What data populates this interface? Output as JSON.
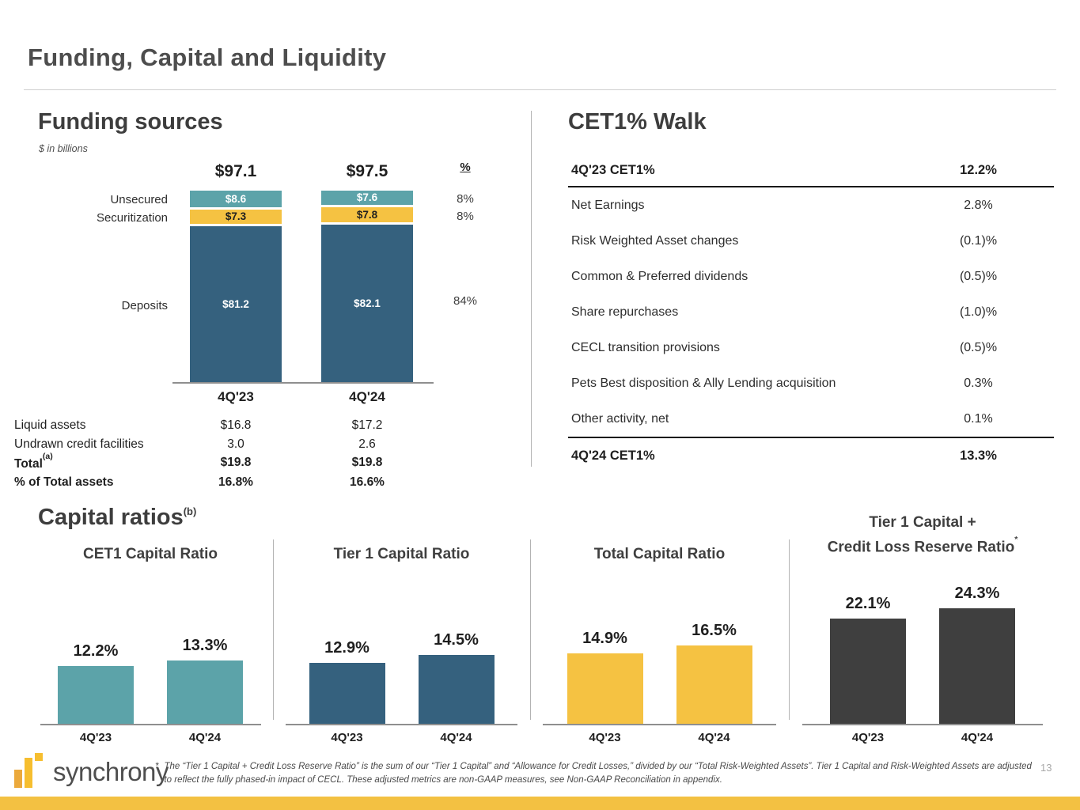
{
  "slide": {
    "title": "Funding, Capital and Liquidity",
    "page_number": "13"
  },
  "chart_data": [
    {
      "id": "funding_sources",
      "type": "bar",
      "stacked": true,
      "title": "Funding sources",
      "subtitle": "$ in billions",
      "pct_header": "%",
      "categories": [
        "4Q'23",
        "4Q'24"
      ],
      "totals": [
        "$97.1",
        "$97.5"
      ],
      "series": [
        {
          "name": "Unsecured",
          "values": [
            8.6,
            7.6
          ],
          "labels": [
            "$8.6",
            "$7.6"
          ],
          "pct": "8%",
          "color": "#5CA3A9",
          "label_color": "#ffffff"
        },
        {
          "name": "Securitization",
          "values": [
            7.3,
            7.8
          ],
          "labels": [
            "$7.3",
            "$7.8"
          ],
          "pct": "8%",
          "color": "#F5C242",
          "label_color": "#1f1f1f"
        },
        {
          "name": "Deposits",
          "values": [
            81.2,
            82.1
          ],
          "labels": [
            "$81.2",
            "$82.1"
          ],
          "pct": "84%",
          "color": "#35617E",
          "label_color": "#ffffff"
        }
      ],
      "liquidity_table": {
        "rows": [
          {
            "label": "Liquid assets",
            "sup": "",
            "col1": "$16.8",
            "col2": "$17.2",
            "bold": false
          },
          {
            "label": "Undrawn credit facilities",
            "sup": "",
            "col1": "3.0",
            "col2": "2.6",
            "bold": false
          },
          {
            "label": "Total",
            "sup": "(a)",
            "col1": "$19.8",
            "col2": "$19.8",
            "bold": true
          },
          {
            "label": "% of Total assets",
            "sup": "",
            "col1": "16.8%",
            "col2": "16.6%",
            "bold": true
          }
        ]
      }
    },
    {
      "id": "cet1_walk",
      "type": "table",
      "title": "CET1% Walk",
      "header_row": {
        "label": "4Q'23 CET1%",
        "value": "12.2%"
      },
      "rows": [
        {
          "label": "Net Earnings",
          "value": "2.8%"
        },
        {
          "label": "Risk Weighted Asset changes",
          "value": "(0.1)%"
        },
        {
          "label": "Common & Preferred dividends",
          "value": "(0.5)%"
        },
        {
          "label": "Share repurchases",
          "value": "(1.0)%"
        },
        {
          "label": "CECL transition provisions",
          "value": "(0.5)%"
        },
        {
          "label": "Pets Best disposition & Ally Lending acquisition",
          "value": "0.3%"
        },
        {
          "label": "Other activity, net",
          "value": "0.1%"
        }
      ],
      "total_row": {
        "label": "4Q'24 CET1%",
        "value": "13.3%"
      }
    },
    {
      "id": "cet1_capital_ratio",
      "type": "bar",
      "title_lines": [
        "CET1 Capital Ratio"
      ],
      "title_sup": "",
      "categories": [
        "4Q'23",
        "4Q'24"
      ],
      "values": [
        12.2,
        13.3
      ],
      "labels": [
        "12.2%",
        "13.3%"
      ],
      "color": "#5CA3A9"
    },
    {
      "id": "tier1_capital_ratio",
      "type": "bar",
      "title_lines": [
        "Tier 1 Capital Ratio"
      ],
      "title_sup": "",
      "categories": [
        "4Q'23",
        "4Q'24"
      ],
      "values": [
        12.9,
        14.5
      ],
      "labels": [
        "12.9%",
        "14.5%"
      ],
      "color": "#35617E"
    },
    {
      "id": "total_capital_ratio",
      "type": "bar",
      "title_lines": [
        "Total Capital Ratio"
      ],
      "title_sup": "",
      "categories": [
        "4Q'23",
        "4Q'24"
      ],
      "values": [
        14.9,
        16.5
      ],
      "labels": [
        "14.9%",
        "16.5%"
      ],
      "color": "#F5C242"
    },
    {
      "id": "tier1_credit_loss_reserve_ratio",
      "type": "bar",
      "title_lines": [
        "Tier 1 Capital +",
        "Credit Loss Reserve Ratio"
      ],
      "title_sup": "*",
      "categories": [
        "4Q'23",
        "4Q'24"
      ],
      "values": [
        22.1,
        24.3
      ],
      "labels": [
        "22.1%",
        "24.3%"
      ],
      "color": "#3F3F3F"
    }
  ],
  "capital_ratios_heading": {
    "text": "Capital ratios",
    "sup": "(b)"
  },
  "footer": {
    "logo_text": "synchrony",
    "footnote_marker": "*",
    "footnote": "The “Tier 1 Capital + Credit Loss Reserve Ratio” is the sum of our “Tier 1 Capital” and “Allowance for Credit Losses,” divided by our “Total Risk-Weighted Assets”. Tier 1 Capital and Risk-Weighted Assets are adjusted to reflect the fully phased-in impact of CECL. These adjusted metrics are non-GAAP measures, see Non-GAAP Reconciliation in appendix.",
    "page_number": "13"
  },
  "colors": {
    "accent_teal": "#5CA3A9",
    "accent_blue": "#35617E",
    "accent_yellow": "#F5C242",
    "accent_charcoal": "#3F3F3F",
    "footer_bar": "#F3C142"
  }
}
